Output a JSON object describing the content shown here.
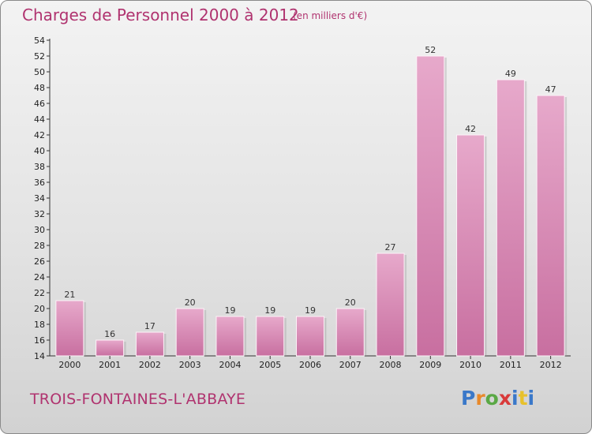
{
  "header": {
    "title": "Charges de Personnel 2000 à 2012",
    "subtitle": "(en milliers d'€)"
  },
  "footer": {
    "commune": "TROIS-FONTAINES-L'ABBAYE",
    "logo_letters": [
      {
        "char": "P",
        "color": "#3a78c9"
      },
      {
        "char": "r",
        "color": "#e8892b"
      },
      {
        "char": "o",
        "color": "#5aa845"
      },
      {
        "char": "x",
        "color": "#d93a3a"
      },
      {
        "char": "i",
        "color": "#3a78c9"
      },
      {
        "char": "t",
        "color": "#e8c12b"
      },
      {
        "char": "i",
        "color": "#3a78c9"
      }
    ]
  },
  "colors": {
    "bar": "#c86fa0",
    "bar_light": "#e7a9cb",
    "title": "#b0336f"
  },
  "chart_data": {
    "type": "bar",
    "categories": [
      "2000",
      "2001",
      "2002",
      "2003",
      "2004",
      "2005",
      "2006",
      "2007",
      "2008",
      "2009",
      "2010",
      "2011",
      "2012"
    ],
    "values": [
      21,
      16,
      17,
      20,
      19,
      19,
      19,
      20,
      27,
      52,
      42,
      49,
      47
    ],
    "title": "Charges de Personnel 2000 à 2012",
    "subtitle": "(en milliers d'€)",
    "xlabel": "",
    "ylabel": "",
    "ylim": [
      14,
      54
    ],
    "ytick_step": 2,
    "grid": false,
    "legend": "none"
  }
}
